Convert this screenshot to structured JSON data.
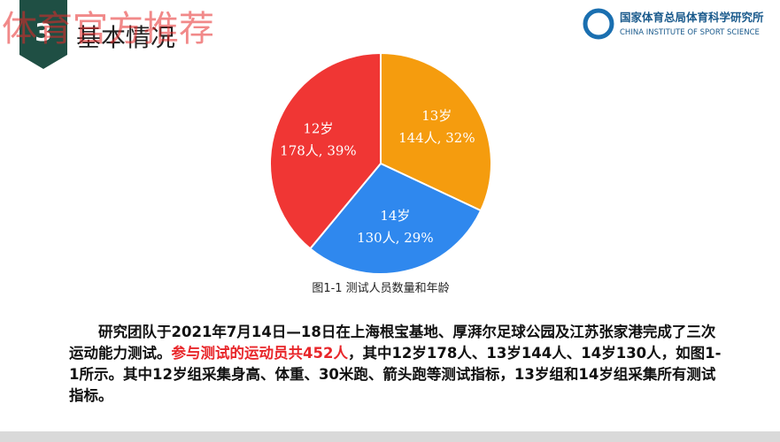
{
  "watermark": "体育官方推荐",
  "section": {
    "number": "3",
    "title": "基本情况"
  },
  "logo": {
    "name_cn": "国家体育总局体育科学研究所",
    "name_en": "CHINA INSTITUTE OF SPORT SCIENCE"
  },
  "chart_data": {
    "type": "pie",
    "caption": "图1-1 测试人员数量和年龄",
    "categories": [
      "13岁",
      "14岁",
      "12岁"
    ],
    "values": [
      32,
      29,
      39
    ],
    "value_labels": [
      "144人, 32%",
      "130人, 29%",
      "178人, 39%"
    ],
    "colors": [
      "#f59c0e",
      "#2f88ee",
      "#f03634"
    ]
  },
  "paragraph": {
    "before": "研究团队于2021年7月14日—18日在上海根宝基地、厚湃尔足球公园及江苏张家港完成了三次运动能力测试。",
    "highlight": "参与测试的运动员共452人",
    "after": "，其中12岁178人、13岁144人、14岁130人，如图1-1所示。其中12岁组采集身高、体重、30米跑、箭头跑等测试指标，13岁组和14岁组采集所有测试指标。"
  }
}
